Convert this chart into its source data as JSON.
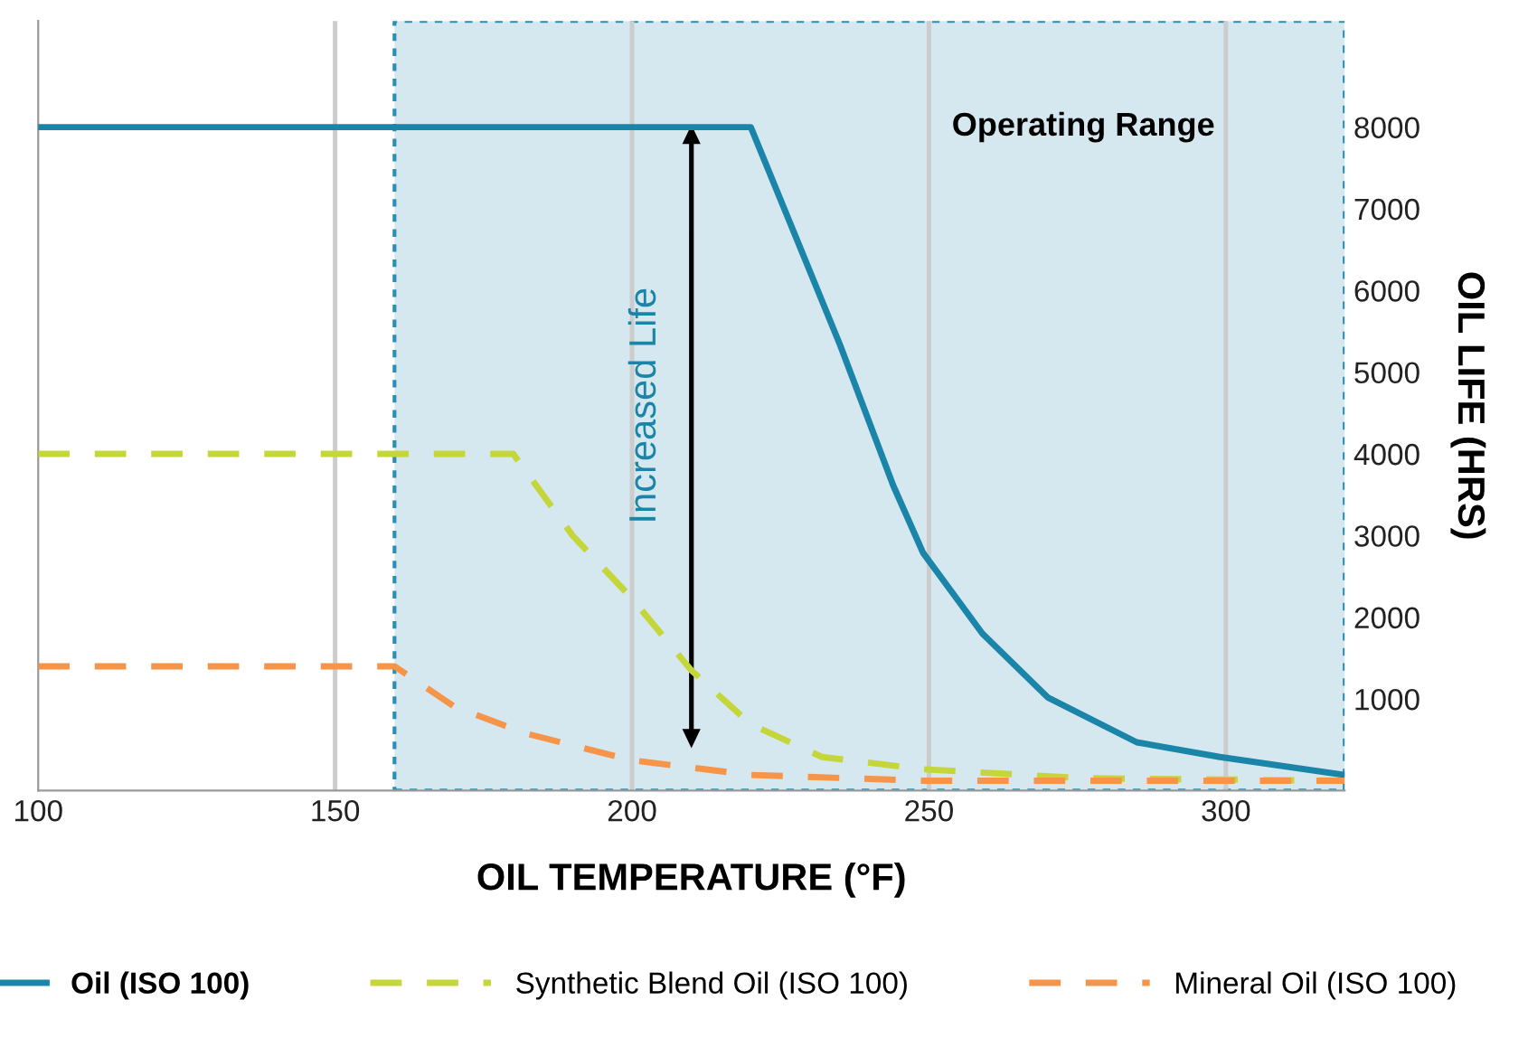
{
  "chart_data": {
    "type": "line",
    "xlabel": "OIL TEMPERATURE (°F)",
    "ylabel": "OIL LIFE (HRS)",
    "xlim": [
      100,
      320
    ],
    "ylim": [
      -120,
      9300
    ],
    "xticks": [
      100,
      150,
      200,
      250,
      300
    ],
    "yticks": [
      1000,
      2000,
      3000,
      4000,
      5000,
      6000,
      7000,
      8000
    ],
    "grid": "x",
    "legend": "bottom",
    "series": [
      {
        "name": "Oil (ISO 100)",
        "color": "#1a85a8",
        "line_style": "solid",
        "x": [
          100,
          220,
          235,
          244,
          249,
          259,
          270,
          285,
          299,
          320
        ],
        "values": [
          8000,
          8000,
          5340,
          3610,
          2790,
          1800,
          1020,
          470,
          290,
          70
        ]
      },
      {
        "name": "Synthetic Blend Oil (ISO 100)",
        "color": "#c5d63a",
        "line_style": "dashed",
        "x": [
          100,
          180,
          190,
          200,
          210,
          220,
          232,
          249,
          276,
          320
        ],
        "values": [
          4000,
          4000,
          3000,
          2230,
          1350,
          690,
          290,
          140,
          30,
          0
        ]
      },
      {
        "name": "Mineral Oil (ISO 100)",
        "color": "#f6944a",
        "line_style": "dashed",
        "x": [
          100,
          160,
          170,
          182,
          200,
          220,
          249,
          320
        ],
        "values": [
          1400,
          1400,
          910,
          580,
          250,
          70,
          0,
          0
        ]
      }
    ],
    "bands": [
      {
        "axis": "x",
        "from": 160,
        "to": 320,
        "label": "Operating Range",
        "color": "#d6e8ef"
      }
    ],
    "annotations": [
      "Increased Life"
    ]
  }
}
